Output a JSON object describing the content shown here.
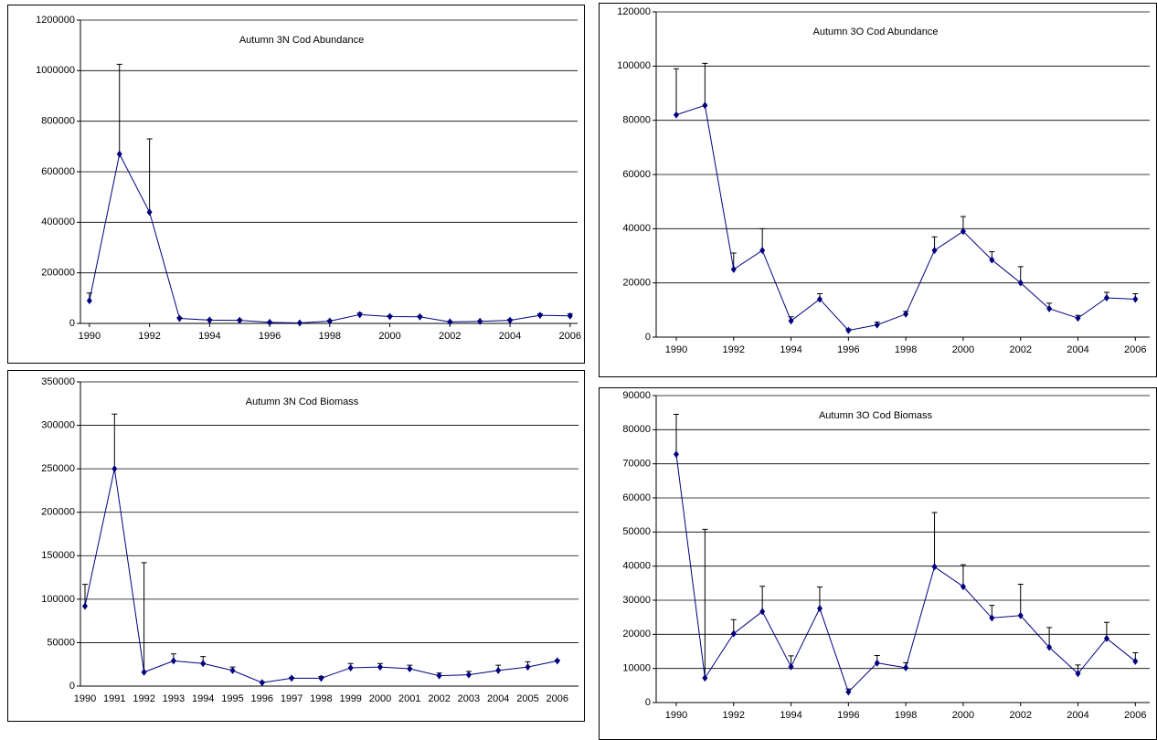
{
  "chart_data": [
    {
      "type": "line",
      "title": "Autumn 3N Cod Abundance",
      "color": "#000080",
      "x": [
        1990,
        1991,
        1992,
        1993,
        1994,
        1995,
        1996,
        1997,
        1998,
        1999,
        2000,
        2001,
        2002,
        2003,
        2004,
        2005,
        2006
      ],
      "values": [
        90000,
        670000,
        440000,
        20000,
        13000,
        12000,
        4000,
        2000,
        9000,
        35000,
        27000,
        26000,
        6000,
        8000,
        12000,
        32000,
        30000
      ],
      "errors": [
        30000,
        355000,
        290000,
        4000,
        3000,
        3000,
        2000,
        1000,
        3000,
        6000,
        4000,
        4000,
        2000,
        2000,
        4000,
        6000,
        8000
      ],
      "xlim": [
        1989.7,
        2006.25
      ],
      "xticks": [
        1990,
        1992,
        1994,
        1996,
        1998,
        2000,
        2002,
        2004,
        2006
      ],
      "ylim": [
        0,
        1200000
      ],
      "yticks": [
        0,
        200000,
        400000,
        600000,
        800000,
        1000000,
        1200000
      ],
      "grid": true
    },
    {
      "type": "line",
      "title": "Autumn 3O Cod Abundance",
      "color": "#000080",
      "x": [
        1990,
        1991,
        1992,
        1993,
        1994,
        1995,
        1996,
        1997,
        1998,
        1999,
        2000,
        2001,
        2002,
        2003,
        2004,
        2005,
        2006
      ],
      "values": [
        82000,
        85500,
        25000,
        32000,
        6000,
        14000,
        2500,
        4500,
        8500,
        32000,
        39000,
        28500,
        20000,
        10500,
        7000,
        14500,
        14000
      ],
      "errors": [
        17000,
        15500,
        6000,
        8000,
        1500,
        2000,
        500,
        1000,
        1000,
        5000,
        5500,
        3000,
        6000,
        2000,
        1000,
        2000,
        2000
      ],
      "xlim": [
        1989.3,
        2006.5
      ],
      "xticks": [
        1990,
        1992,
        1994,
        1996,
        1998,
        2000,
        2002,
        2004,
        2006
      ],
      "ylim": [
        0,
        120000
      ],
      "yticks": [
        0,
        20000,
        40000,
        60000,
        80000,
        100000,
        120000
      ],
      "grid": true
    },
    {
      "type": "line",
      "title": "Autumn 3N Cod Biomass",
      "color": "#000080",
      "categories": [
        "1990",
        "1991",
        "1992",
        "1993",
        "1994",
        "1995",
        "1996",
        "1997",
        "1998",
        "1999",
        "2000",
        "2001",
        "2002",
        "2003",
        "2004",
        "2005",
        "2006"
      ],
      "values": [
        92000,
        250000,
        16000,
        29000,
        26000,
        18000,
        4000,
        9000,
        9000,
        21000,
        22000,
        20000,
        12000,
        13000,
        18000,
        22000,
        29000
      ],
      "errors": [
        25000,
        63000,
        126000,
        8000,
        8000,
        4000,
        1000,
        1000,
        2000,
        5000,
        4000,
        4000,
        3000,
        4000,
        6000,
        6000,
        1000
      ],
      "ylim": [
        0,
        350000
      ],
      "yticks": [
        0,
        50000,
        100000,
        150000,
        200000,
        250000,
        300000,
        350000
      ],
      "grid": true
    },
    {
      "type": "line",
      "title": "Autumn 3O Cod Biomass",
      "color": "#000080",
      "x": [
        1990,
        1991,
        1992,
        1993,
        1994,
        1995,
        1996,
        1997,
        1998,
        1999,
        2000,
        2001,
        2002,
        2003,
        2004,
        2005,
        2006
      ],
      "values": [
        72800,
        7200,
        20200,
        26700,
        10500,
        27600,
        3100,
        11600,
        10200,
        39800,
        34000,
        24800,
        25500,
        16200,
        8500,
        18800,
        12100
      ],
      "errors": [
        11700,
        43600,
        4100,
        7400,
        3200,
        6300,
        900,
        2200,
        1500,
        15900,
        6400,
        3700,
        9200,
        5800,
        2500,
        4700,
        2500
      ],
      "xlim": [
        1989.3,
        2006.5
      ],
      "xticks": [
        1990,
        1992,
        1994,
        1996,
        1998,
        2000,
        2002,
        2004,
        2006
      ],
      "ylim": [
        0,
        90000
      ],
      "yticks": [
        0,
        10000,
        20000,
        30000,
        40000,
        50000,
        60000,
        70000,
        80000,
        90000
      ],
      "grid": true
    }
  ]
}
